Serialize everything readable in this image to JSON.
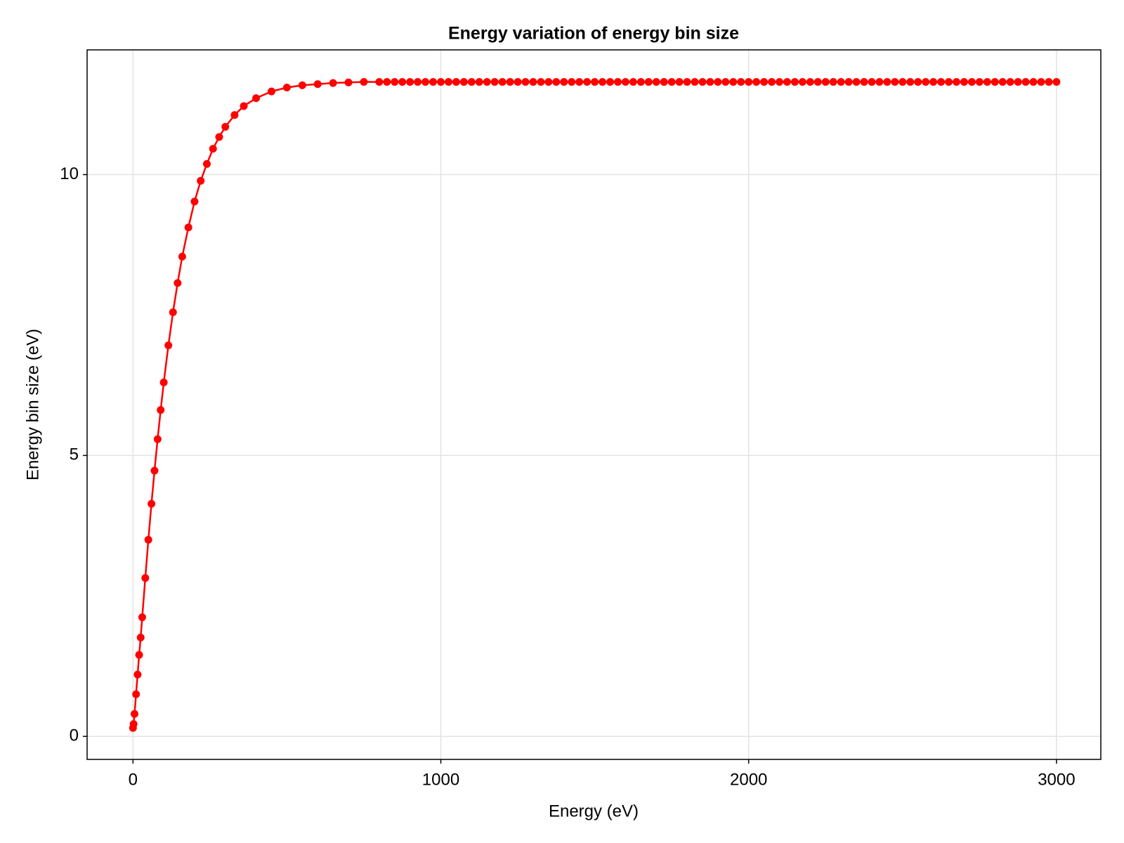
{
  "chart_data": {
    "type": "line",
    "title": "Energy variation of energy bin size",
    "x_label": "Energy (eV)",
    "y_label": "Energy bin size (eV)",
    "x": [
      0,
      2,
      5,
      10,
      15,
      20,
      25,
      30,
      40,
      50,
      60,
      70,
      80,
      90,
      100,
      115,
      130,
      145,
      160,
      180,
      200,
      220,
      240,
      260,
      280,
      300,
      330,
      360,
      400,
      450,
      500,
      550,
      600,
      650,
      700,
      750,
      800,
      825,
      850,
      875,
      900,
      925,
      950,
      975,
      1000,
      1025,
      1050,
      1075,
      1100,
      1125,
      1150,
      1175,
      1200,
      1225,
      1250,
      1275,
      1300,
      1325,
      1350,
      1375,
      1400,
      1425,
      1450,
      1475,
      1500,
      1525,
      1550,
      1575,
      1600,
      1625,
      1650,
      1675,
      1700,
      1725,
      1750,
      1775,
      1800,
      1825,
      1850,
      1875,
      1900,
      1925,
      1950,
      1975,
      2000,
      2025,
      2050,
      2075,
      2100,
      2125,
      2150,
      2175,
      2200,
      2225,
      2250,
      2275,
      2300,
      2325,
      2350,
      2375,
      2400,
      2425,
      2450,
      2475,
      2500,
      2525,
      2550,
      2575,
      2600,
      2625,
      2650,
      2675,
      2700,
      2725,
      2750,
      2775,
      2800,
      2825,
      2850,
      2875,
      2900,
      2925,
      2950,
      2975,
      3000
    ],
    "values": [
      0.15,
      0.22,
      0.4,
      0.75,
      1.1,
      1.45,
      1.76,
      2.12,
      2.82,
      3.5,
      4.14,
      4.73,
      5.29,
      5.81,
      6.3,
      6.96,
      7.55,
      8.07,
      8.54,
      9.06,
      9.52,
      9.89,
      10.19,
      10.46,
      10.67,
      10.85,
      11.06,
      11.22,
      11.36,
      11.48,
      11.55,
      11.59,
      11.61,
      11.63,
      11.64,
      11.65,
      11.65,
      11.65,
      11.65,
      11.65,
      11.65,
      11.65,
      11.65,
      11.65,
      11.65,
      11.65,
      11.65,
      11.65,
      11.65,
      11.65,
      11.65,
      11.65,
      11.65,
      11.65,
      11.65,
      11.65,
      11.65,
      11.65,
      11.65,
      11.65,
      11.65,
      11.65,
      11.65,
      11.65,
      11.65,
      11.65,
      11.65,
      11.65,
      11.65,
      11.65,
      11.65,
      11.65,
      11.65,
      11.65,
      11.65,
      11.65,
      11.65,
      11.65,
      11.65,
      11.65,
      11.65,
      11.65,
      11.65,
      11.65,
      11.65,
      11.65,
      11.65,
      11.65,
      11.65,
      11.65,
      11.65,
      11.65,
      11.65,
      11.65,
      11.65,
      11.65,
      11.65,
      11.65,
      11.65,
      11.65,
      11.65,
      11.65,
      11.65,
      11.65,
      11.65,
      11.65,
      11.65,
      11.65,
      11.65,
      11.65,
      11.65,
      11.65,
      11.65,
      11.65,
      11.65,
      11.65,
      11.65,
      11.65,
      11.65,
      11.65,
      11.65,
      11.65,
      11.65,
      11.65,
      11.65
    ],
    "color": "#ff0000",
    "xlim": [
      -149,
      3144
    ],
    "ylim": [
      -0.41,
      12.22
    ],
    "xticks": [
      0,
      1000,
      2000,
      3000
    ],
    "yticks": [
      0,
      5,
      10
    ],
    "grid": true
  }
}
